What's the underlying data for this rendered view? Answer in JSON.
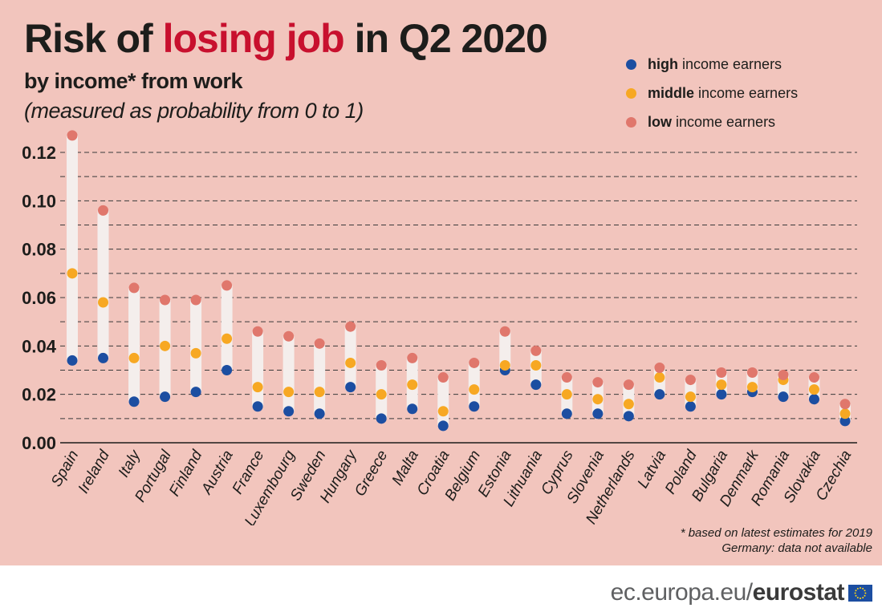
{
  "header": {
    "title_part1": "Risk of",
    "title_highlight": "losing job",
    "title_part2": "in Q2 2020",
    "subtitle": "by income* from work",
    "subnote": "(measured as probability from 0 to 1)"
  },
  "legend": [
    {
      "bold": "high",
      "rest": "income earners",
      "color": "#1c4ea1"
    },
    {
      "bold": "middle",
      "rest": "income earners",
      "color": "#f7a823"
    },
    {
      "bold": "low",
      "rest": "income earners",
      "color": "#e0776c"
    }
  ],
  "footnote": {
    "line1": "* based on latest estimates for 2019",
    "line2": "Germany: data not available"
  },
  "footer": {
    "url": "ec.europa.eu/",
    "brand": "eurostat"
  },
  "chart_data": {
    "type": "scatter",
    "ylim": [
      0,
      0.12
    ],
    "yticks": [
      "0.00",
      "0.02",
      "0.04",
      "0.06",
      "0.08",
      "0.10",
      "0.12"
    ],
    "grid": "dashed horizontal",
    "legend_position": "top-right",
    "categories": [
      "Spain",
      "Ireland",
      "Italy",
      "Portugal",
      "Finland",
      "Austria",
      "France",
      "Luxembourg",
      "Sweden",
      "Hungary",
      "Greece",
      "Malta",
      "Croatia",
      "Belgium",
      "Estonia",
      "Lithuania",
      "Cyprus",
      "Slovenia",
      "Netherlands",
      "Latvia",
      "Poland",
      "Bulgaria",
      "Denmark",
      "Romania",
      "Slovakia",
      "Czechia"
    ],
    "series": [
      {
        "name": "high income earners",
        "color": "#1c4ea1",
        "values": [
          0.034,
          0.035,
          0.017,
          0.019,
          0.021,
          0.03,
          0.015,
          0.013,
          0.012,
          0.023,
          0.01,
          0.014,
          0.007,
          0.015,
          0.03,
          0.024,
          0.012,
          0.012,
          0.011,
          0.02,
          0.015,
          0.02,
          0.021,
          0.019,
          0.018,
          0.009
        ]
      },
      {
        "name": "middle income earners",
        "color": "#f7a823",
        "values": [
          0.07,
          0.058,
          0.035,
          0.04,
          0.037,
          0.043,
          0.023,
          0.021,
          0.021,
          0.033,
          0.02,
          0.024,
          0.013,
          0.022,
          0.032,
          0.032,
          0.02,
          0.018,
          0.016,
          0.027,
          0.019,
          0.024,
          0.023,
          0.026,
          0.022,
          0.012
        ]
      },
      {
        "name": "low income earners",
        "color": "#e0776c",
        "values": [
          0.127,
          0.096,
          0.064,
          0.059,
          0.059,
          0.065,
          0.046,
          0.044,
          0.041,
          0.048,
          0.032,
          0.035,
          0.027,
          0.033,
          0.046,
          0.038,
          0.027,
          0.025,
          0.024,
          0.031,
          0.026,
          0.029,
          0.029,
          0.028,
          0.027,
          0.016
        ]
      }
    ]
  }
}
